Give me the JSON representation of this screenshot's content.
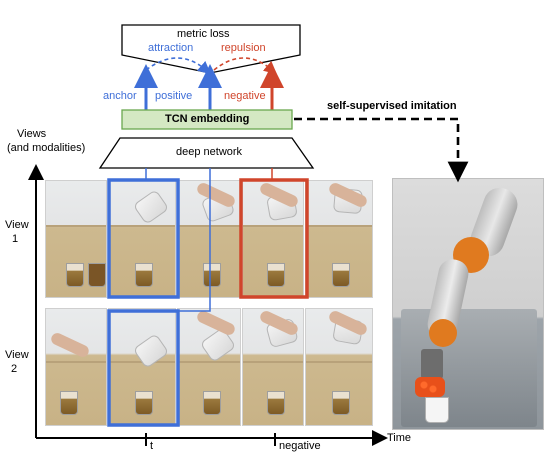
{
  "metric_loss": "metric loss",
  "attraction": "attraction",
  "repulsion": "repulsion",
  "anchor": "anchor",
  "positive": "positive",
  "negative_top": "negative",
  "tcn": "TCN embedding",
  "deep_network": "deep network",
  "self_supervised": "self-supervised imitation",
  "views_title": "Views",
  "modalities": "(and modalities)",
  "view1_line1": "View",
  "view1_line2": "1",
  "view2_line1": "View",
  "view2_line2": "2",
  "tick_t": "t",
  "tick_negative": "negative",
  "time_axis": "Time",
  "colors": {
    "blue": "#3f6fd8",
    "red": "#d0452b",
    "green_fill": "#d4e8c3",
    "green_stroke": "#6aa84f"
  }
}
